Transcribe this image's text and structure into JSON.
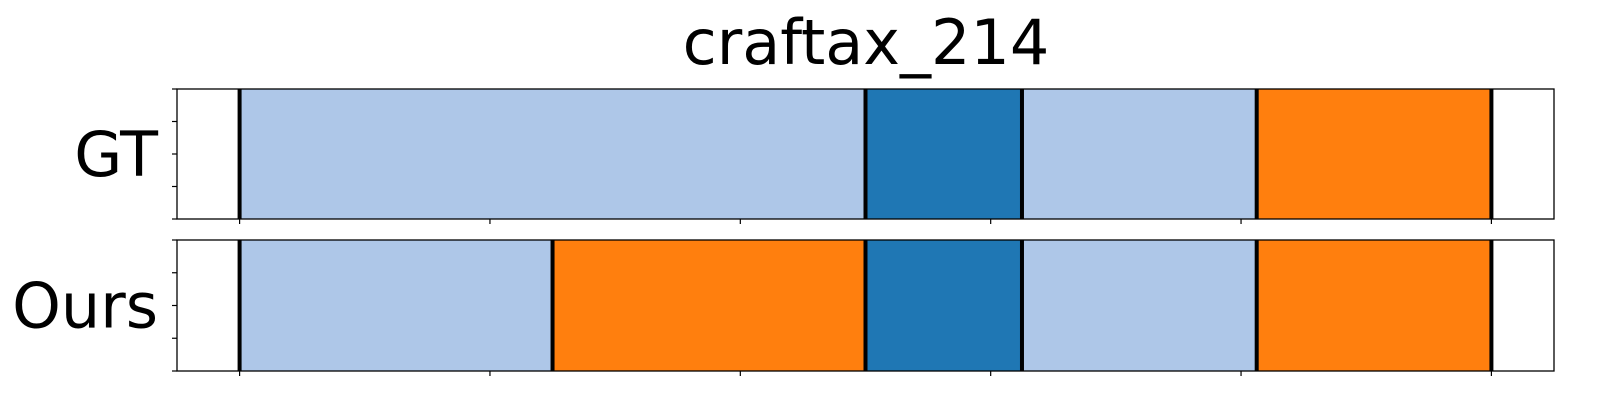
{
  "chart_data": {
    "type": "segmentation-timeline",
    "title": "craftax_214",
    "x_range": [
      -0.25,
      5.25
    ],
    "x_ticks": [
      0,
      1,
      2,
      3,
      4,
      5
    ],
    "tick_labels_shown": false,
    "grid": false,
    "class_colors": {
      "light_blue": "#aec7e8",
      "blue": "#1f77b4",
      "orange": "#ff7f0e"
    },
    "boundary_color": "#000000",
    "rows": [
      {
        "label": "GT",
        "segments": [
          {
            "start": 0.0,
            "end": 2.5,
            "class": "light_blue"
          },
          {
            "start": 2.5,
            "end": 3.125,
            "class": "blue"
          },
          {
            "start": 3.125,
            "end": 4.0625,
            "class": "light_blue"
          },
          {
            "start": 4.0625,
            "end": 5.0,
            "class": "orange"
          }
        ]
      },
      {
        "label": "Ours",
        "segments": [
          {
            "start": 0.0,
            "end": 1.25,
            "class": "light_blue"
          },
          {
            "start": 1.25,
            "end": 2.5,
            "class": "orange"
          },
          {
            "start": 2.5,
            "end": 3.125,
            "class": "blue"
          },
          {
            "start": 3.125,
            "end": 4.0625,
            "class": "light_blue"
          },
          {
            "start": 4.0625,
            "end": 5.0,
            "class": "orange"
          }
        ]
      }
    ]
  }
}
